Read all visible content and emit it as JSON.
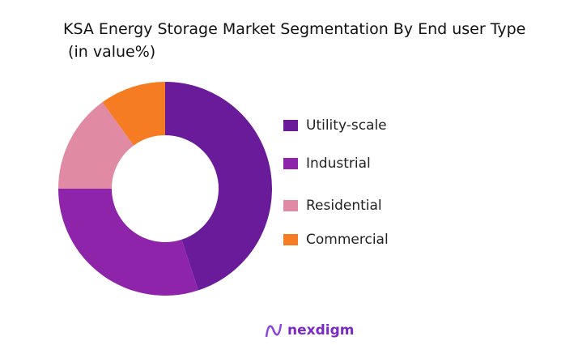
{
  "chart_data": {
    "type": "donut",
    "title": "KSA Energy Storage Market Segmentation By End user Type",
    "subtitle": "(in value%)",
    "categories": [
      "Utility-scale",
      "Industrial",
      "Residential",
      "Commercial"
    ],
    "values": [
      45,
      30,
      15,
      10
    ],
    "colors": [
      "#6a1b9a",
      "#8e24aa",
      "#e08aa3",
      "#f57c22"
    ],
    "legend_position": "right"
  },
  "brand": {
    "name": "nexdigm",
    "color": "#7b2bc4"
  }
}
